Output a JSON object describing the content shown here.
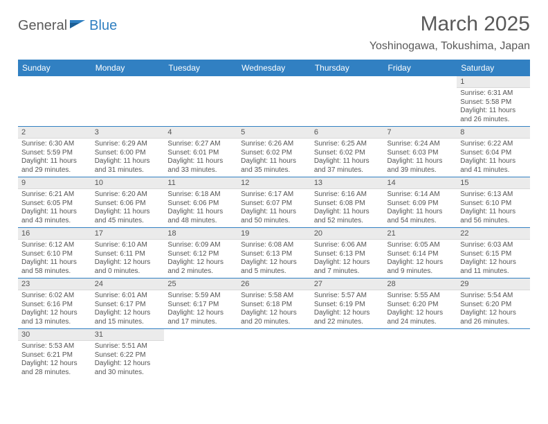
{
  "logo": {
    "text1": "General",
    "text2": "Blue"
  },
  "title": "March 2025",
  "location": "Yoshinogawa, Tokushima, Japan",
  "colors": {
    "header_bg": "#3180c2",
    "header_text": "#ffffff",
    "daynum_bg": "#ebebeb",
    "cell_border": "#3180c2",
    "body_text": "#545454",
    "logo_blue": "#2f7fc1"
  },
  "weekdays": [
    "Sunday",
    "Monday",
    "Tuesday",
    "Wednesday",
    "Thursday",
    "Friday",
    "Saturday"
  ],
  "weeks": [
    [
      null,
      null,
      null,
      null,
      null,
      null,
      {
        "d": "1",
        "sr": "Sunrise: 6:31 AM",
        "ss": "Sunset: 5:58 PM",
        "dl1": "Daylight: 11 hours",
        "dl2": "and 26 minutes."
      }
    ],
    [
      {
        "d": "2",
        "sr": "Sunrise: 6:30 AM",
        "ss": "Sunset: 5:59 PM",
        "dl1": "Daylight: 11 hours",
        "dl2": "and 29 minutes."
      },
      {
        "d": "3",
        "sr": "Sunrise: 6:29 AM",
        "ss": "Sunset: 6:00 PM",
        "dl1": "Daylight: 11 hours",
        "dl2": "and 31 minutes."
      },
      {
        "d": "4",
        "sr": "Sunrise: 6:27 AM",
        "ss": "Sunset: 6:01 PM",
        "dl1": "Daylight: 11 hours",
        "dl2": "and 33 minutes."
      },
      {
        "d": "5",
        "sr": "Sunrise: 6:26 AM",
        "ss": "Sunset: 6:02 PM",
        "dl1": "Daylight: 11 hours",
        "dl2": "and 35 minutes."
      },
      {
        "d": "6",
        "sr": "Sunrise: 6:25 AM",
        "ss": "Sunset: 6:02 PM",
        "dl1": "Daylight: 11 hours",
        "dl2": "and 37 minutes."
      },
      {
        "d": "7",
        "sr": "Sunrise: 6:24 AM",
        "ss": "Sunset: 6:03 PM",
        "dl1": "Daylight: 11 hours",
        "dl2": "and 39 minutes."
      },
      {
        "d": "8",
        "sr": "Sunrise: 6:22 AM",
        "ss": "Sunset: 6:04 PM",
        "dl1": "Daylight: 11 hours",
        "dl2": "and 41 minutes."
      }
    ],
    [
      {
        "d": "9",
        "sr": "Sunrise: 6:21 AM",
        "ss": "Sunset: 6:05 PM",
        "dl1": "Daylight: 11 hours",
        "dl2": "and 43 minutes."
      },
      {
        "d": "10",
        "sr": "Sunrise: 6:20 AM",
        "ss": "Sunset: 6:06 PM",
        "dl1": "Daylight: 11 hours",
        "dl2": "and 45 minutes."
      },
      {
        "d": "11",
        "sr": "Sunrise: 6:18 AM",
        "ss": "Sunset: 6:06 PM",
        "dl1": "Daylight: 11 hours",
        "dl2": "and 48 minutes."
      },
      {
        "d": "12",
        "sr": "Sunrise: 6:17 AM",
        "ss": "Sunset: 6:07 PM",
        "dl1": "Daylight: 11 hours",
        "dl2": "and 50 minutes."
      },
      {
        "d": "13",
        "sr": "Sunrise: 6:16 AM",
        "ss": "Sunset: 6:08 PM",
        "dl1": "Daylight: 11 hours",
        "dl2": "and 52 minutes."
      },
      {
        "d": "14",
        "sr": "Sunrise: 6:14 AM",
        "ss": "Sunset: 6:09 PM",
        "dl1": "Daylight: 11 hours",
        "dl2": "and 54 minutes."
      },
      {
        "d": "15",
        "sr": "Sunrise: 6:13 AM",
        "ss": "Sunset: 6:10 PM",
        "dl1": "Daylight: 11 hours",
        "dl2": "and 56 minutes."
      }
    ],
    [
      {
        "d": "16",
        "sr": "Sunrise: 6:12 AM",
        "ss": "Sunset: 6:10 PM",
        "dl1": "Daylight: 11 hours",
        "dl2": "and 58 minutes."
      },
      {
        "d": "17",
        "sr": "Sunrise: 6:10 AM",
        "ss": "Sunset: 6:11 PM",
        "dl1": "Daylight: 12 hours",
        "dl2": "and 0 minutes."
      },
      {
        "d": "18",
        "sr": "Sunrise: 6:09 AM",
        "ss": "Sunset: 6:12 PM",
        "dl1": "Daylight: 12 hours",
        "dl2": "and 2 minutes."
      },
      {
        "d": "19",
        "sr": "Sunrise: 6:08 AM",
        "ss": "Sunset: 6:13 PM",
        "dl1": "Daylight: 12 hours",
        "dl2": "and 5 minutes."
      },
      {
        "d": "20",
        "sr": "Sunrise: 6:06 AM",
        "ss": "Sunset: 6:13 PM",
        "dl1": "Daylight: 12 hours",
        "dl2": "and 7 minutes."
      },
      {
        "d": "21",
        "sr": "Sunrise: 6:05 AM",
        "ss": "Sunset: 6:14 PM",
        "dl1": "Daylight: 12 hours",
        "dl2": "and 9 minutes."
      },
      {
        "d": "22",
        "sr": "Sunrise: 6:03 AM",
        "ss": "Sunset: 6:15 PM",
        "dl1": "Daylight: 12 hours",
        "dl2": "and 11 minutes."
      }
    ],
    [
      {
        "d": "23",
        "sr": "Sunrise: 6:02 AM",
        "ss": "Sunset: 6:16 PM",
        "dl1": "Daylight: 12 hours",
        "dl2": "and 13 minutes."
      },
      {
        "d": "24",
        "sr": "Sunrise: 6:01 AM",
        "ss": "Sunset: 6:17 PM",
        "dl1": "Daylight: 12 hours",
        "dl2": "and 15 minutes."
      },
      {
        "d": "25",
        "sr": "Sunrise: 5:59 AM",
        "ss": "Sunset: 6:17 PM",
        "dl1": "Daylight: 12 hours",
        "dl2": "and 17 minutes."
      },
      {
        "d": "26",
        "sr": "Sunrise: 5:58 AM",
        "ss": "Sunset: 6:18 PM",
        "dl1": "Daylight: 12 hours",
        "dl2": "and 20 minutes."
      },
      {
        "d": "27",
        "sr": "Sunrise: 5:57 AM",
        "ss": "Sunset: 6:19 PM",
        "dl1": "Daylight: 12 hours",
        "dl2": "and 22 minutes."
      },
      {
        "d": "28",
        "sr": "Sunrise: 5:55 AM",
        "ss": "Sunset: 6:20 PM",
        "dl1": "Daylight: 12 hours",
        "dl2": "and 24 minutes."
      },
      {
        "d": "29",
        "sr": "Sunrise: 5:54 AM",
        "ss": "Sunset: 6:20 PM",
        "dl1": "Daylight: 12 hours",
        "dl2": "and 26 minutes."
      }
    ],
    [
      {
        "d": "30",
        "sr": "Sunrise: 5:53 AM",
        "ss": "Sunset: 6:21 PM",
        "dl1": "Daylight: 12 hours",
        "dl2": "and 28 minutes."
      },
      {
        "d": "31",
        "sr": "Sunrise: 5:51 AM",
        "ss": "Sunset: 6:22 PM",
        "dl1": "Daylight: 12 hours",
        "dl2": "and 30 minutes."
      },
      null,
      null,
      null,
      null,
      null
    ]
  ]
}
